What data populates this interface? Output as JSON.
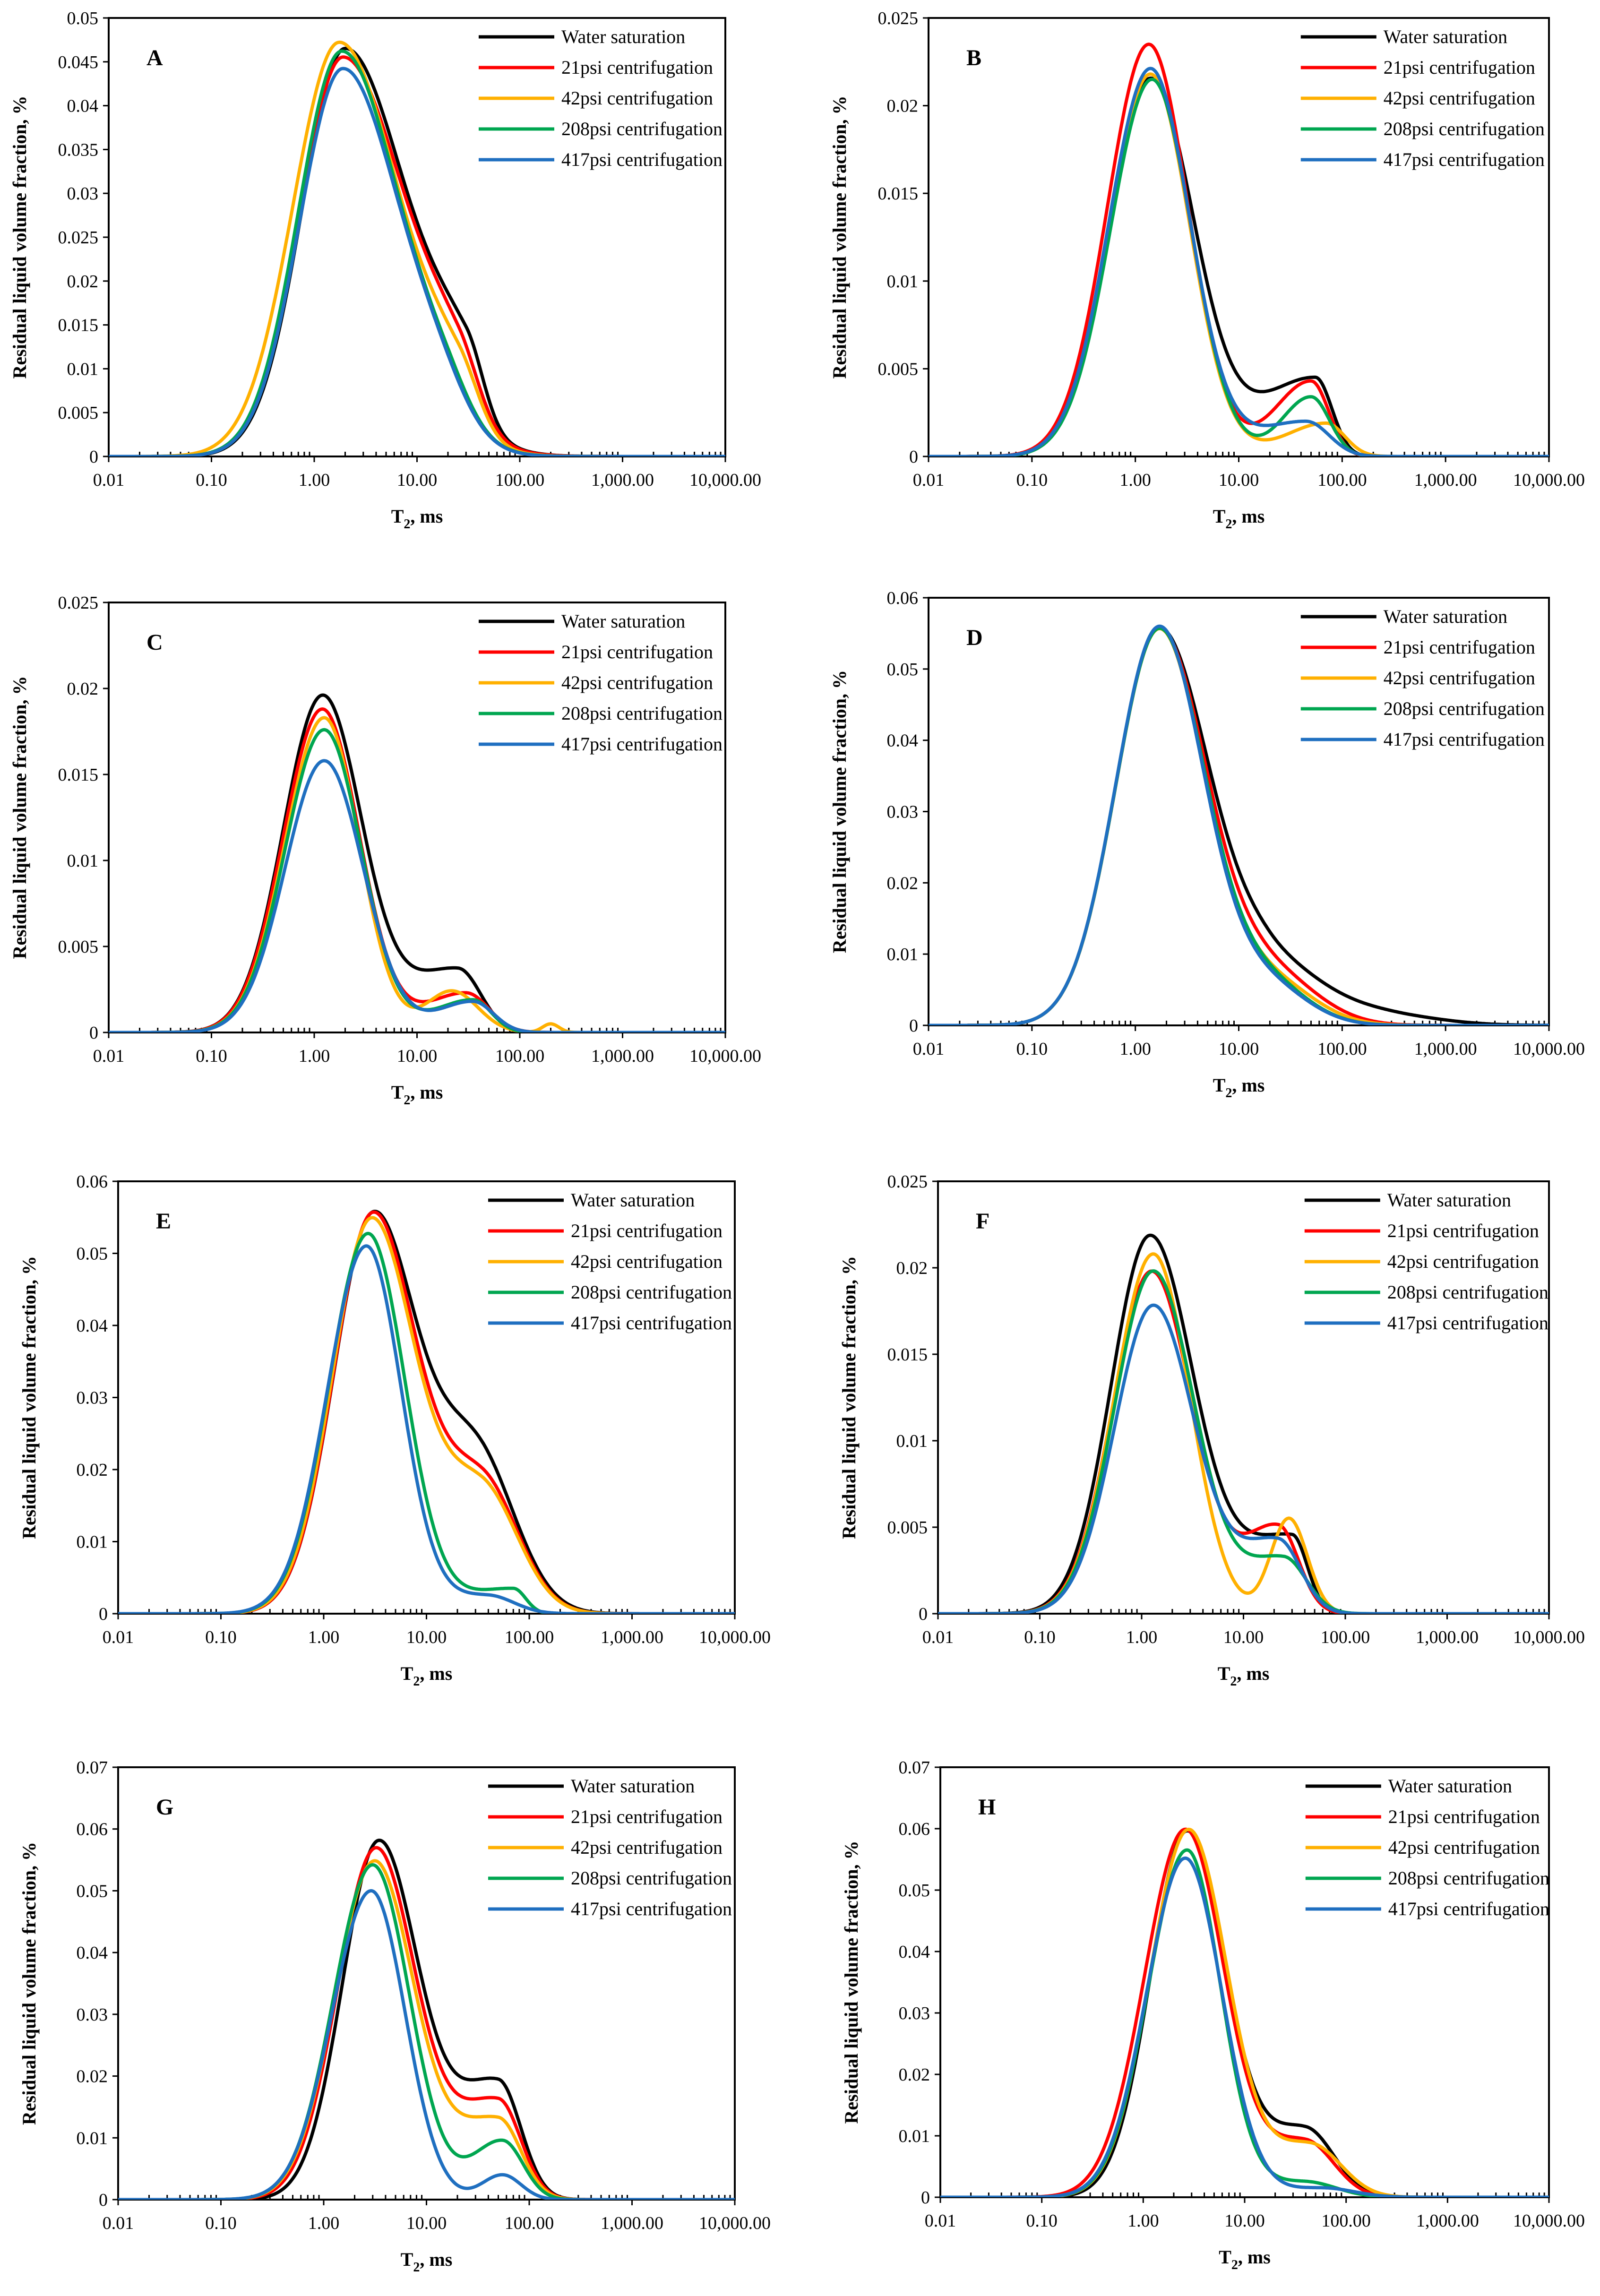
{
  "figure": {
    "xlabel_main": "T",
    "xlabel_sub": "2",
    "xlabel_tail": ", ms",
    "ylabel": "Residual liquid volume fraction, %",
    "x_ticks": [
      "0.01",
      "0.10",
      "1.00",
      "10.00",
      "100.00",
      "1,000.00",
      "10,000.00"
    ]
  },
  "legend": [
    {
      "name": "Water saturation",
      "color": "#000000"
    },
    {
      "name": "21psi centrifugation",
      "color": "#ff0000"
    },
    {
      "name": "42psi centrifugation",
      "color": "#ffb000"
    },
    {
      "name": "208psi centrifugation",
      "color": "#00a650"
    },
    {
      "name": "417psi centrifugation",
      "color": "#1f6fc0"
    }
  ],
  "chart_data": [
    {
      "type": "line",
      "panel": "A",
      "xscale": "log",
      "xlim": [
        0.01,
        10000
      ],
      "ylim": [
        0,
        0.05
      ],
      "y_ticks": [
        "0",
        "0.005",
        "0.01",
        "0.015",
        "0.02",
        "0.025",
        "0.03",
        "0.035",
        "0.04",
        "0.045",
        "0.05"
      ],
      "series": [
        {
          "name": "Water saturation",
          "peaks": [
            {
              "a": 0.0465,
              "mu": 2.0,
              "sl": 0.42,
              "sr": 0.6
            },
            {
              "a": 0.008,
              "mu": 30,
              "sl": 0.35,
              "sr": 0.17
            }
          ]
        },
        {
          "name": "21psi centrifugation",
          "peaks": [
            {
              "a": 0.0455,
              "mu": 1.9,
              "sl": 0.42,
              "sr": 0.6
            },
            {
              "a": 0.007,
              "mu": 25,
              "sl": 0.35,
              "sr": 0.2
            }
          ]
        },
        {
          "name": "42psi centrifugation",
          "peaks": [
            {
              "a": 0.0472,
              "mu": 1.75,
              "sl": 0.45,
              "sr": 0.58
            },
            {
              "a": 0.0065,
              "mu": 25,
              "sl": 0.35,
              "sr": 0.2
            }
          ]
        },
        {
          "name": "208psi centrifugation",
          "peaks": [
            {
              "a": 0.0462,
              "mu": 1.85,
              "sl": 0.42,
              "sr": 0.56
            },
            {
              "a": 0.004,
              "mu": 18,
              "sl": 0.3,
              "sr": 0.25
            }
          ]
        },
        {
          "name": "417psi centrifugation",
          "peaks": [
            {
              "a": 0.0442,
              "mu": 1.9,
              "sl": 0.42,
              "sr": 0.55
            },
            {
              "a": 0.004,
              "mu": 16,
              "sl": 0.3,
              "sr": 0.28
            }
          ]
        }
      ]
    },
    {
      "type": "line",
      "panel": "B",
      "xscale": "log",
      "xlim": [
        0.01,
        10000
      ],
      "ylim": [
        0,
        0.025
      ],
      "y_ticks": [
        "0",
        "0.005",
        "0.01",
        "0.015",
        "0.02",
        "0.025"
      ],
      "series": [
        {
          "name": "Water saturation",
          "peaks": [
            {
              "a": 0.0215,
              "mu": 1.4,
              "sl": 0.4,
              "sr": 0.42
            },
            {
              "a": 0.0045,
              "mu": 55,
              "sl": 0.55,
              "sr": 0.16
            }
          ]
        },
        {
          "name": "21psi centrifugation",
          "peaks": [
            {
              "a": 0.0235,
              "mu": 1.35,
              "sl": 0.4,
              "sr": 0.38
            },
            {
              "a": 0.0043,
              "mu": 50,
              "sl": 0.35,
              "sr": 0.17
            }
          ]
        },
        {
          "name": "42psi centrifugation",
          "peaks": [
            {
              "a": 0.0218,
              "mu": 1.4,
              "sl": 0.4,
              "sr": 0.38
            },
            {
              "a": 0.0019,
              "mu": 70,
              "sl": 0.4,
              "sr": 0.18
            }
          ]
        },
        {
          "name": "208psi centrifugation",
          "peaks": [
            {
              "a": 0.0215,
              "mu": 1.45,
              "sl": 0.4,
              "sr": 0.38
            },
            {
              "a": 0.0034,
              "mu": 50,
              "sl": 0.28,
              "sr": 0.18
            }
          ]
        },
        {
          "name": "417psi centrifugation",
          "peaks": [
            {
              "a": 0.0221,
              "mu": 1.4,
              "sl": 0.4,
              "sr": 0.38
            },
            {
              "a": 0.002,
              "mu": 45,
              "sl": 0.5,
              "sr": 0.22
            }
          ]
        }
      ]
    },
    {
      "type": "line",
      "panel": "C",
      "xscale": "log",
      "xlim": [
        0.01,
        10000
      ],
      "ylim": [
        0,
        0.025
      ],
      "y_ticks": [
        "0",
        "0.005",
        "0.01",
        "0.015",
        "0.02",
        "0.025"
      ],
      "series": [
        {
          "name": "Water saturation",
          "peaks": [
            {
              "a": 0.0195,
              "mu": 1.2,
              "sl": 0.38,
              "sr": 0.38
            },
            {
              "a": 0.0037,
              "mu": 25,
              "sl": 0.5,
              "sr": 0.22
            }
          ]
        },
        {
          "name": "21psi centrifugation",
          "peaks": [
            {
              "a": 0.0188,
              "mu": 1.2,
              "sl": 0.38,
              "sr": 0.36
            },
            {
              "a": 0.0023,
              "mu": 30,
              "sl": 0.4,
              "sr": 0.22
            }
          ]
        },
        {
          "name": "42psi centrifugation",
          "peaks": [
            {
              "a": 0.0183,
              "mu": 1.25,
              "sl": 0.38,
              "sr": 0.34
            },
            {
              "a": 0.0024,
              "mu": 22,
              "sl": 0.25,
              "sr": 0.25
            },
            {
              "a": 0.0005,
              "mu": 200,
              "sl": 0.08,
              "sr": 0.08
            }
          ]
        },
        {
          "name": "208psi centrifugation",
          "peaks": [
            {
              "a": 0.0176,
              "mu": 1.25,
              "sl": 0.38,
              "sr": 0.36
            },
            {
              "a": 0.0019,
              "mu": 35,
              "sl": 0.38,
              "sr": 0.18
            }
          ]
        },
        {
          "name": "417psi centrifugation",
          "peaks": [
            {
              "a": 0.0158,
              "mu": 1.25,
              "sl": 0.38,
              "sr": 0.38
            },
            {
              "a": 0.0018,
              "mu": 35,
              "sl": 0.35,
              "sr": 0.2
            }
          ]
        }
      ]
    },
    {
      "type": "line",
      "panel": "D",
      "xscale": "log",
      "xlim": [
        0.01,
        10000
      ],
      "ylim": [
        0,
        0.06
      ],
      "y_ticks": [
        "0",
        "0.01",
        "0.02",
        "0.03",
        "0.04",
        "0.05",
        "0.06"
      ],
      "series": [
        {
          "name": "Water saturation",
          "peaks": [
            {
              "a": 0.0555,
              "mu": 1.7,
              "sl": 0.42,
              "sr": 0.48
            },
            {
              "a": 0.0085,
              "mu": 20,
              "sl": 0.4,
              "sr": 0.55
            },
            {
              "a": 0.0012,
              "mu": 300,
              "sl": 0.4,
              "sr": 0.5
            }
          ]
        },
        {
          "name": "21psi centrifugation",
          "peaks": [
            {
              "a": 0.0555,
              "mu": 1.7,
              "sl": 0.42,
              "sr": 0.46
            },
            {
              "a": 0.007,
              "mu": 20,
              "sl": 0.4,
              "sr": 0.45
            }
          ]
        },
        {
          "name": "42psi centrifugation",
          "peaks": [
            {
              "a": 0.0555,
              "mu": 1.7,
              "sl": 0.42,
              "sr": 0.44
            },
            {
              "a": 0.006,
              "mu": 20,
              "sl": 0.4,
              "sr": 0.42
            }
          ]
        },
        {
          "name": "208psi centrifugation",
          "peaks": [
            {
              "a": 0.0555,
              "mu": 1.7,
              "sl": 0.42,
              "sr": 0.44
            },
            {
              "a": 0.0058,
              "mu": 18,
              "sl": 0.4,
              "sr": 0.4
            }
          ]
        },
        {
          "name": "417psi centrifugation",
          "peaks": [
            {
              "a": 0.0558,
              "mu": 1.7,
              "sl": 0.42,
              "sr": 0.43
            },
            {
              "a": 0.0055,
              "mu": 18,
              "sl": 0.4,
              "sr": 0.4
            }
          ]
        }
      ]
    },
    {
      "type": "line",
      "panel": "E",
      "xscale": "log",
      "xlim": [
        0.01,
        10000
      ],
      "ylim": [
        0,
        0.06
      ],
      "y_ticks": [
        "0",
        "0.01",
        "0.02",
        "0.03",
        "0.04",
        "0.05",
        "0.06"
      ],
      "series": [
        {
          "name": "Water saturation",
          "peaks": [
            {
              "a": 0.0548,
              "mu": 3.0,
              "sl": 0.38,
              "sr": 0.42
            },
            {
              "a": 0.022,
              "mu": 30,
              "sl": 0.4,
              "sr": 0.38
            }
          ]
        },
        {
          "name": "21psi centrifugation",
          "peaks": [
            {
              "a": 0.0552,
              "mu": 3.0,
              "sl": 0.38,
              "sr": 0.42
            },
            {
              "a": 0.018,
              "mu": 35,
              "sl": 0.4,
              "sr": 0.35
            }
          ]
        },
        {
          "name": "42psi centrifugation",
          "peaks": [
            {
              "a": 0.0545,
              "mu": 2.9,
              "sl": 0.38,
              "sr": 0.42
            },
            {
              "a": 0.017,
              "mu": 35,
              "sl": 0.4,
              "sr": 0.35
            }
          ]
        },
        {
          "name": "208psi centrifugation",
          "peaks": [
            {
              "a": 0.0527,
              "mu": 2.7,
              "sl": 0.38,
              "sr": 0.36
            },
            {
              "a": 0.0035,
              "mu": 70,
              "sl": 0.5,
              "sr": 0.12
            }
          ]
        },
        {
          "name": "417psi centrifugation",
          "peaks": [
            {
              "a": 0.051,
              "mu": 2.6,
              "sl": 0.38,
              "sr": 0.34
            },
            {
              "a": 0.0025,
              "mu": 40,
              "sl": 0.4,
              "sr": 0.25
            }
          ]
        }
      ]
    },
    {
      "type": "line",
      "panel": "F",
      "xscale": "log",
      "xlim": [
        0.01,
        10000
      ],
      "ylim": [
        0,
        0.025
      ],
      "y_ticks": [
        "0",
        "0.005",
        "0.01",
        "0.015",
        "0.02",
        "0.025"
      ],
      "series": [
        {
          "name": "Water saturation",
          "peaks": [
            {
              "a": 0.0217,
              "mu": 1.2,
              "sl": 0.38,
              "sr": 0.42
            },
            {
              "a": 0.0045,
              "mu": 30,
              "sl": 0.55,
              "sr": 0.15
            }
          ]
        },
        {
          "name": "21psi centrifugation",
          "peaks": [
            {
              "a": 0.0198,
              "mu": 1.25,
              "sl": 0.38,
              "sr": 0.4
            },
            {
              "a": 0.005,
              "mu": 22,
              "sl": 0.35,
              "sr": 0.2
            }
          ]
        },
        {
          "name": "42psi centrifugation",
          "peaks": [
            {
              "a": 0.0208,
              "mu": 1.3,
              "sl": 0.38,
              "sr": 0.36
            },
            {
              "a": 0.0055,
              "mu": 28,
              "sl": 0.18,
              "sr": 0.18
            }
          ]
        },
        {
          "name": "208psi centrifugation",
          "peaks": [
            {
              "a": 0.0198,
              "mu": 1.3,
              "sl": 0.38,
              "sr": 0.4
            },
            {
              "a": 0.0032,
              "mu": 25,
              "sl": 0.4,
              "sr": 0.22
            }
          ]
        },
        {
          "name": "417psi centrifugation",
          "peaks": [
            {
              "a": 0.0178,
              "mu": 1.3,
              "sl": 0.38,
              "sr": 0.4
            },
            {
              "a": 0.0042,
              "mu": 22,
              "sl": 0.4,
              "sr": 0.22
            }
          ]
        }
      ]
    },
    {
      "type": "line",
      "panel": "G",
      "xscale": "log",
      "xlim": [
        0.01,
        10000
      ],
      "ylim": [
        0,
        0.07
      ],
      "y_ticks": [
        "0",
        "0.01",
        "0.02",
        "0.03",
        "0.04",
        "0.05",
        "0.06",
        "0.07"
      ],
      "series": [
        {
          "name": "Water saturation",
          "peaks": [
            {
              "a": 0.0575,
              "mu": 3.4,
              "sl": 0.35,
              "sr": 0.38
            },
            {
              "a": 0.019,
              "mu": 50,
              "sl": 0.45,
              "sr": 0.22
            }
          ]
        },
        {
          "name": "21psi centrifugation",
          "peaks": [
            {
              "a": 0.0565,
              "mu": 3.2,
              "sl": 0.37,
              "sr": 0.38
            },
            {
              "a": 0.016,
              "mu": 50,
              "sl": 0.45,
              "sr": 0.22
            }
          ]
        },
        {
          "name": "42psi centrifugation",
          "peaks": [
            {
              "a": 0.0545,
              "mu": 3.1,
              "sl": 0.38,
              "sr": 0.38
            },
            {
              "a": 0.013,
              "mu": 50,
              "sl": 0.45,
              "sr": 0.22
            }
          ]
        },
        {
          "name": "208psi centrifugation",
          "peaks": [
            {
              "a": 0.0542,
              "mu": 3.0,
              "sl": 0.38,
              "sr": 0.36
            },
            {
              "a": 0.0095,
              "mu": 55,
              "sl": 0.3,
              "sr": 0.2
            }
          ]
        },
        {
          "name": "417psi centrifugation",
          "peaks": [
            {
              "a": 0.05,
              "mu": 2.9,
              "sl": 0.38,
              "sr": 0.33
            },
            {
              "a": 0.004,
              "mu": 55,
              "sl": 0.2,
              "sr": 0.18
            }
          ]
        }
      ]
    },
    {
      "type": "line",
      "panel": "H",
      "xscale": "log",
      "xlim": [
        0.01,
        10000
      ],
      "ylim": [
        0,
        0.07
      ],
      "y_ticks": [
        "0",
        "0.01",
        "0.02",
        "0.03",
        "0.04",
        "0.05",
        "0.06",
        "0.07"
      ],
      "series": [
        {
          "name": "Water saturation",
          "peaks": [
            {
              "a": 0.0595,
              "mu": 2.7,
              "sl": 0.36,
              "sr": 0.38
            },
            {
              "a": 0.011,
              "mu": 40,
              "sl": 0.4,
              "sr": 0.28
            }
          ]
        },
        {
          "name": "21psi centrifugation",
          "peaks": [
            {
              "a": 0.0598,
              "mu": 2.6,
              "sl": 0.4,
              "sr": 0.38
            },
            {
              "a": 0.009,
              "mu": 40,
              "sl": 0.4,
              "sr": 0.28
            }
          ]
        },
        {
          "name": "42psi centrifugation",
          "peaks": [
            {
              "a": 0.0598,
              "mu": 2.8,
              "sl": 0.38,
              "sr": 0.38
            },
            {
              "a": 0.0085,
              "mu": 45,
              "sl": 0.4,
              "sr": 0.3
            }
          ]
        },
        {
          "name": "208psi centrifugation",
          "peaks": [
            {
              "a": 0.0565,
              "mu": 2.7,
              "sl": 0.38,
              "sr": 0.33
            },
            {
              "a": 0.0025,
              "mu": 40,
              "sl": 0.4,
              "sr": 0.3
            }
          ]
        },
        {
          "name": "417psi centrifugation",
          "peaks": [
            {
              "a": 0.0552,
              "mu": 2.6,
              "sl": 0.38,
              "sr": 0.36
            },
            {
              "a": 0.0015,
              "mu": 60,
              "sl": 0.4,
              "sr": 0.3
            }
          ]
        }
      ]
    }
  ]
}
